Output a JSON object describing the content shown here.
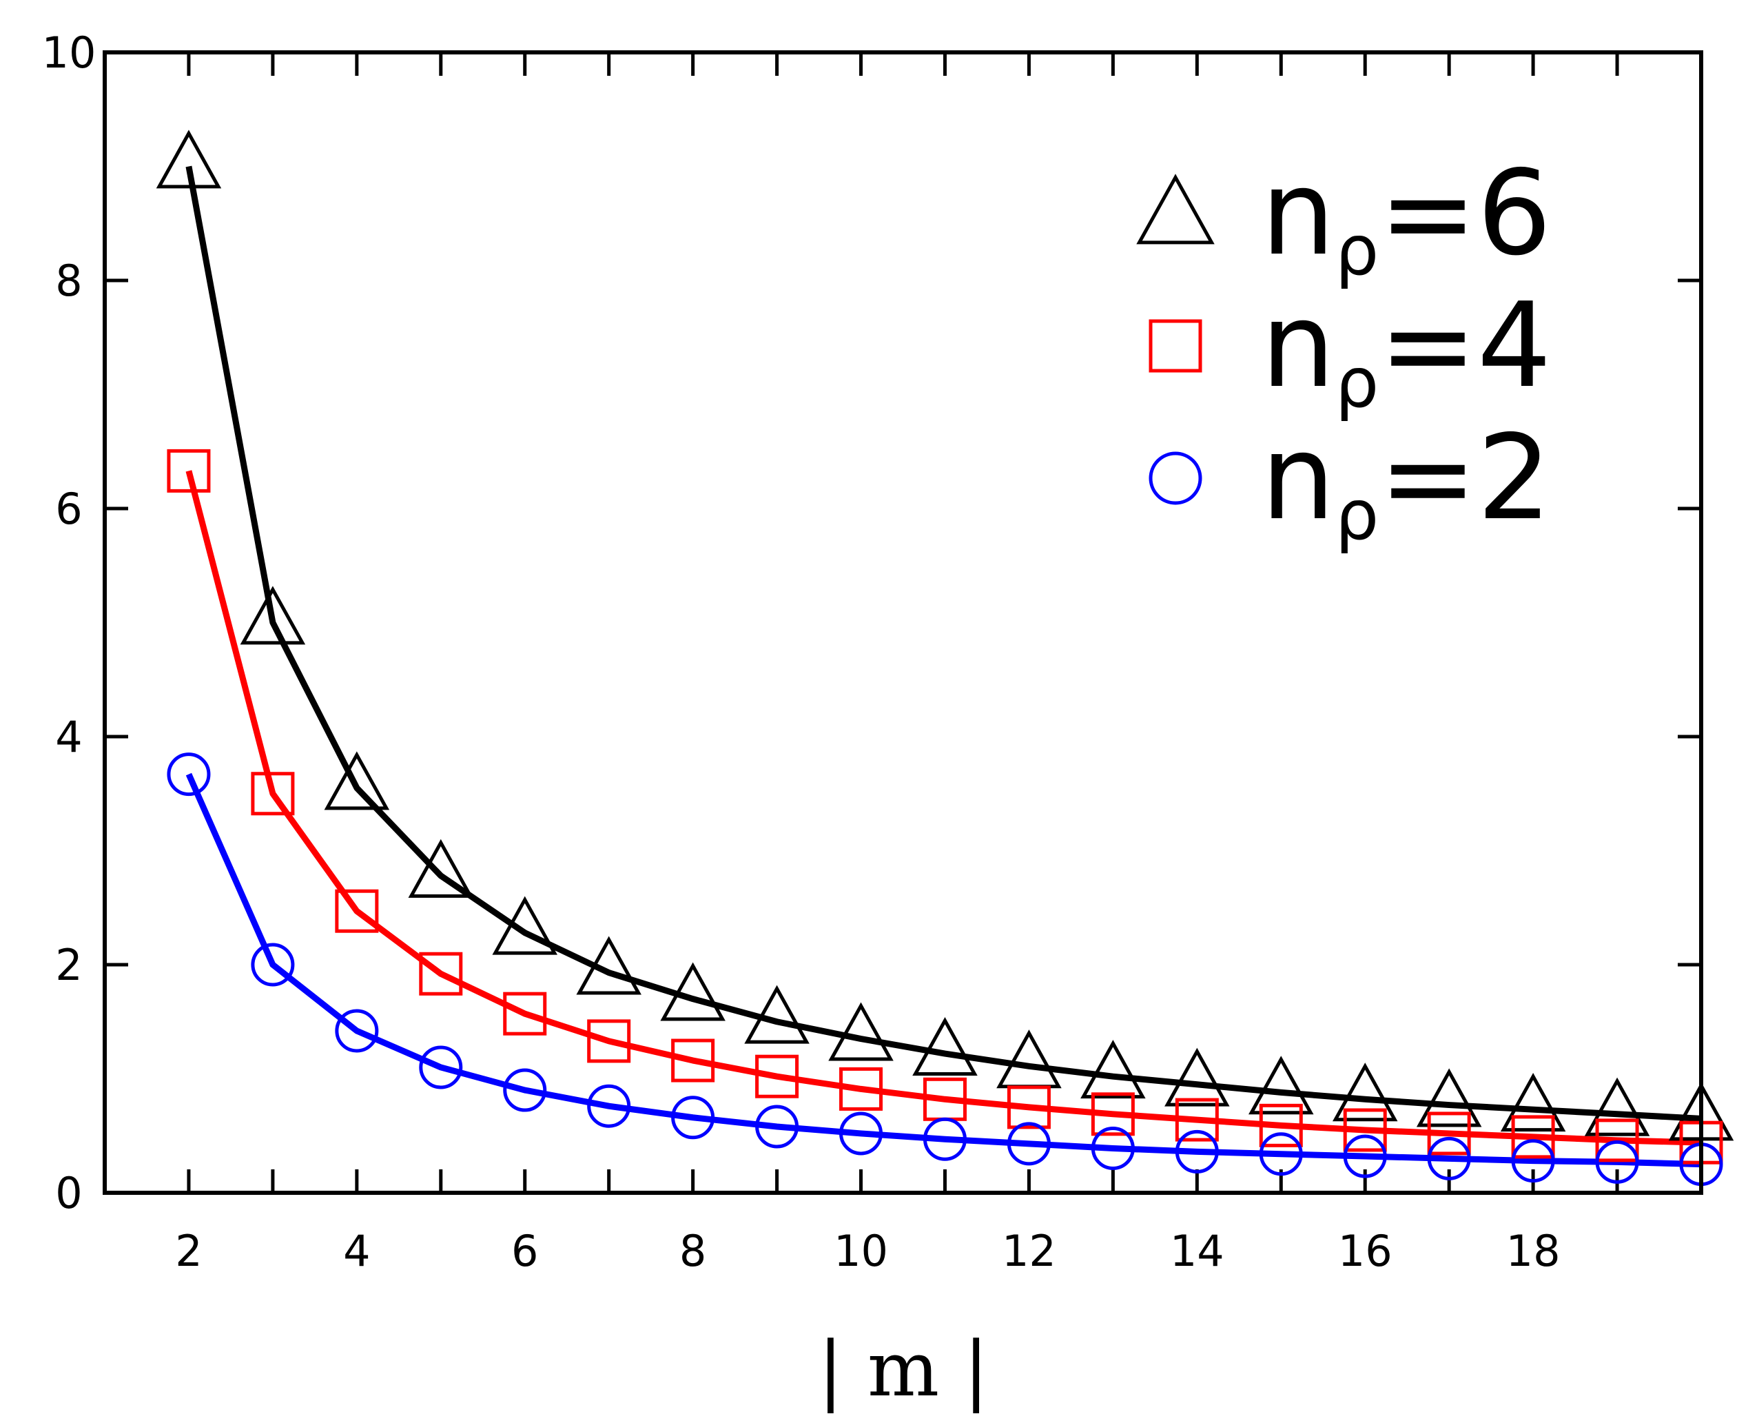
{
  "chart_data": {
    "type": "line",
    "title": "",
    "xlabel": "| m |",
    "ylabel": "",
    "xlim": [
      1,
      20
    ],
    "ylim": [
      0,
      10
    ],
    "xticks": [
      2,
      4,
      6,
      8,
      10,
      12,
      14,
      16,
      18
    ],
    "xtick_labels": [
      "2",
      "4",
      "6",
      "8",
      "10",
      "12",
      "14",
      "16",
      "18"
    ],
    "minor_xticks": [
      1,
      3,
      5,
      7,
      9,
      11,
      13,
      15,
      17,
      19
    ],
    "yticks": [
      0,
      2,
      4,
      6,
      8,
      10
    ],
    "ytick_labels": [
      "0",
      "2",
      "4",
      "6",
      "8",
      "10"
    ],
    "grid": false,
    "legend_position": "top-right",
    "x": [
      2,
      3,
      4,
      5,
      6,
      7,
      8,
      9,
      10,
      11,
      12,
      13,
      14,
      15,
      16,
      17,
      18,
      19,
      20
    ],
    "series": [
      {
        "name": "n_ρ=6",
        "label_main": "n",
        "label_sub": "ρ",
        "label_tail": "=6",
        "color": "#000000",
        "marker": "triangle",
        "values": [
          9.0,
          5.0,
          3.55,
          2.78,
          2.28,
          1.93,
          1.7,
          1.5,
          1.35,
          1.22,
          1.11,
          1.02,
          0.95,
          0.88,
          0.82,
          0.77,
          0.73,
          0.69,
          0.65
        ]
      },
      {
        "name": "n_ρ=4",
        "label_main": "n",
        "label_sub": "ρ",
        "label_tail": "=4",
        "color": "#ff0000",
        "marker": "square",
        "values": [
          6.33,
          3.5,
          2.47,
          1.92,
          1.57,
          1.33,
          1.16,
          1.02,
          0.91,
          0.82,
          0.75,
          0.69,
          0.64,
          0.59,
          0.55,
          0.52,
          0.49,
          0.46,
          0.44
        ]
      },
      {
        "name": "n_ρ=2",
        "label_main": "n",
        "label_sub": "ρ",
        "label_tail": "=2",
        "color": "#0000ff",
        "marker": "circle",
        "values": [
          3.67,
          2.0,
          1.42,
          1.1,
          0.9,
          0.76,
          0.66,
          0.58,
          0.52,
          0.47,
          0.43,
          0.39,
          0.36,
          0.34,
          0.32,
          0.3,
          0.28,
          0.27,
          0.25
        ]
      }
    ]
  }
}
